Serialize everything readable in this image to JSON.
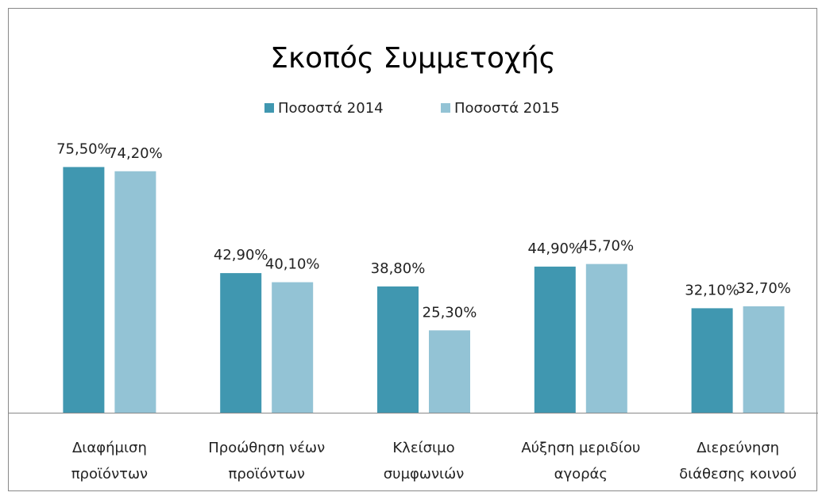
{
  "chart_data": {
    "type": "bar",
    "title": "Σκοπός Συμμετοχής",
    "categories": [
      "Διαφήμιση\nπροϊόντων",
      "Προώθηση νέων\nπροϊόντων",
      "Κλείσιμο\nσυμφωνιών",
      "Αύξηση μεριδίου\nαγοράς",
      "Διερεύνηση\nδιάθεσης κοινού"
    ],
    "series": [
      {
        "name": "Ποσοστά 2014",
        "color": "#4097b0",
        "values": [
          75.5,
          42.9,
          38.8,
          44.9,
          32.1
        ],
        "value_labels": [
          "75,50%",
          "42,90%",
          "38,80%",
          "44,90%",
          "32,10%"
        ]
      },
      {
        "name": "Ποσοστά 2015",
        "color": "#93c3d5",
        "values": [
          74.2,
          40.1,
          25.3,
          45.7,
          32.7
        ],
        "value_labels": [
          "74,20%",
          "40,10%",
          "25,30%",
          "45,70%",
          "32,70%"
        ]
      }
    ],
    "ylim": [
      0,
      80
    ],
    "legend": "top"
  }
}
